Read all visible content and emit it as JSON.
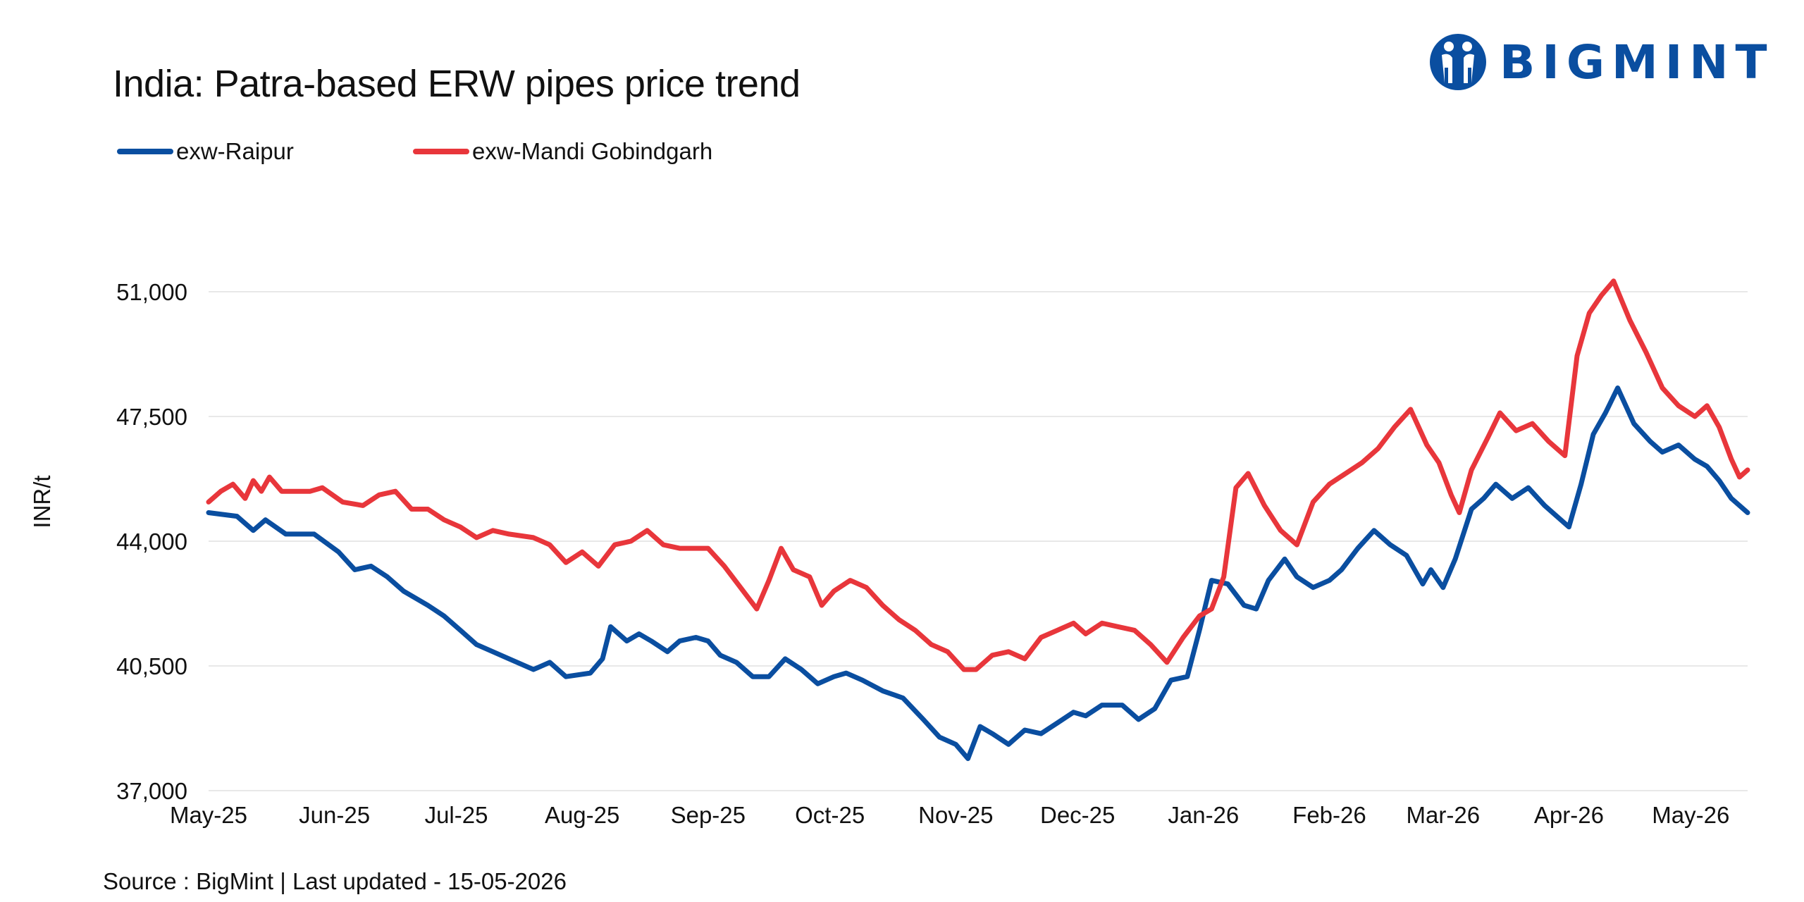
{
  "header": {
    "title": "India: Patra-based ERW pipes price trend",
    "brand": "BIGMINT"
  },
  "footer": {
    "source": "Source : BigMint | Last updated - 15-05-2026"
  },
  "colors": {
    "raipur": "#0a4ea0",
    "gobindgarh": "#e8363b",
    "grid": "#e8e8e8",
    "brand": "#0a4ea0"
  },
  "chart_data": {
    "type": "line",
    "title": "India: Patra-based ERW pipes price trend",
    "xlabel": "",
    "ylabel": "INR/t",
    "x_range": [
      "2025-05-01",
      "2026-05-15"
    ],
    "ylim": [
      37000,
      51000
    ],
    "yticks": [
      37000,
      40500,
      44000,
      47500,
      51000
    ],
    "ytick_labels": [
      "37,000",
      "40,500",
      "44,000",
      "47,500",
      "51,000"
    ],
    "xticks": [
      "2025-05-01",
      "2025-06-01",
      "2025-07-01",
      "2025-08-01",
      "2025-09-01",
      "2025-10-01",
      "2025-11-01",
      "2025-12-01",
      "2026-01-01",
      "2026-02-01",
      "2026-03-01",
      "2026-04-01",
      "2026-05-01"
    ],
    "xtick_labels": [
      "May-25",
      "Jun-25",
      "Jul-25",
      "Aug-25",
      "Sep-25",
      "Oct-25",
      "Nov-25",
      "Dec-25",
      "Jan-26",
      "Feb-26",
      "Mar-26",
      "Apr-26",
      "May-26"
    ],
    "grid": true,
    "legend_position": "top-left",
    "series": [
      {
        "name": "exw-Raipur",
        "color": "#0a4ea0",
        "points": [
          [
            "2025-05-01",
            44800
          ],
          [
            "2025-05-08",
            44700
          ],
          [
            "2025-05-12",
            44300
          ],
          [
            "2025-05-15",
            44600
          ],
          [
            "2025-05-20",
            44200
          ],
          [
            "2025-05-27",
            44200
          ],
          [
            "2025-06-02",
            43700
          ],
          [
            "2025-06-06",
            43200
          ],
          [
            "2025-06-10",
            43300
          ],
          [
            "2025-06-14",
            43000
          ],
          [
            "2025-06-18",
            42600
          ],
          [
            "2025-06-24",
            42200
          ],
          [
            "2025-06-28",
            41900
          ],
          [
            "2025-07-02",
            41500
          ],
          [
            "2025-07-06",
            41100
          ],
          [
            "2025-07-10",
            40900
          ],
          [
            "2025-07-14",
            40700
          ],
          [
            "2025-07-20",
            40400
          ],
          [
            "2025-07-24",
            40600
          ],
          [
            "2025-07-28",
            40200
          ],
          [
            "2025-08-03",
            40300
          ],
          [
            "2025-08-06",
            40700
          ],
          [
            "2025-08-08",
            41600
          ],
          [
            "2025-08-12",
            41200
          ],
          [
            "2025-08-15",
            41400
          ],
          [
            "2025-08-18",
            41200
          ],
          [
            "2025-08-22",
            40900
          ],
          [
            "2025-08-25",
            41200
          ],
          [
            "2025-08-29",
            41300
          ],
          [
            "2025-09-01",
            41200
          ],
          [
            "2025-09-04",
            40800
          ],
          [
            "2025-09-08",
            40600
          ],
          [
            "2025-09-12",
            40200
          ],
          [
            "2025-09-16",
            40200
          ],
          [
            "2025-09-20",
            40700
          ],
          [
            "2025-09-24",
            40400
          ],
          [
            "2025-09-28",
            40000
          ],
          [
            "2025-10-02",
            40200
          ],
          [
            "2025-10-05",
            40300
          ],
          [
            "2025-10-09",
            40100
          ],
          [
            "2025-10-14",
            39800
          ],
          [
            "2025-10-19",
            39600
          ],
          [
            "2025-10-24",
            39000
          ],
          [
            "2025-10-28",
            38500
          ],
          [
            "2025-11-01",
            38300
          ],
          [
            "2025-11-04",
            37900
          ],
          [
            "2025-11-07",
            38800
          ],
          [
            "2025-11-10",
            38600
          ],
          [
            "2025-11-14",
            38300
          ],
          [
            "2025-11-18",
            38700
          ],
          [
            "2025-11-22",
            38600
          ],
          [
            "2025-11-26",
            38900
          ],
          [
            "2025-11-30",
            39200
          ],
          [
            "2025-12-03",
            39100
          ],
          [
            "2025-12-07",
            39400
          ],
          [
            "2025-12-12",
            39400
          ],
          [
            "2025-12-16",
            39000
          ],
          [
            "2025-12-20",
            39300
          ],
          [
            "2025-12-24",
            40100
          ],
          [
            "2025-12-28",
            40200
          ],
          [
            "2025-12-31",
            41500
          ],
          [
            "2026-01-03",
            42900
          ],
          [
            "2026-01-07",
            42800
          ],
          [
            "2026-01-11",
            42200
          ],
          [
            "2026-01-14",
            42100
          ],
          [
            "2026-01-17",
            42900
          ],
          [
            "2026-01-21",
            43500
          ],
          [
            "2026-01-24",
            43000
          ],
          [
            "2026-01-28",
            42700
          ],
          [
            "2026-02-01",
            42900
          ],
          [
            "2026-02-04",
            43200
          ],
          [
            "2026-02-08",
            43800
          ],
          [
            "2026-02-12",
            44300
          ],
          [
            "2026-02-16",
            43900
          ],
          [
            "2026-02-20",
            43600
          ],
          [
            "2026-02-24",
            42800
          ],
          [
            "2026-02-26",
            43200
          ],
          [
            "2026-03-01",
            42700
          ],
          [
            "2026-03-04",
            43500
          ],
          [
            "2026-03-08",
            44900
          ],
          [
            "2026-03-11",
            45200
          ],
          [
            "2026-03-14",
            45600
          ],
          [
            "2026-03-18",
            45200
          ],
          [
            "2026-03-22",
            45500
          ],
          [
            "2026-03-26",
            45000
          ],
          [
            "2026-03-29",
            44700
          ],
          [
            "2026-04-01",
            44400
          ],
          [
            "2026-04-04",
            45600
          ],
          [
            "2026-04-07",
            47000
          ],
          [
            "2026-04-10",
            47600
          ],
          [
            "2026-04-13",
            48300
          ],
          [
            "2026-04-17",
            47300
          ],
          [
            "2026-04-21",
            46800
          ],
          [
            "2026-04-24",
            46500
          ],
          [
            "2026-04-28",
            46700
          ],
          [
            "2026-05-02",
            46300
          ],
          [
            "2026-05-05",
            46100
          ],
          [
            "2026-05-08",
            45700
          ],
          [
            "2026-05-11",
            45200
          ],
          [
            "2026-05-15",
            44800
          ]
        ]
      },
      {
        "name": "exw-Mandi Gobindgarh",
        "color": "#e8363b",
        "points": [
          [
            "2025-05-01",
            45100
          ],
          [
            "2025-05-04",
            45400
          ],
          [
            "2025-05-07",
            45600
          ],
          [
            "2025-05-10",
            45200
          ],
          [
            "2025-05-12",
            45700
          ],
          [
            "2025-05-14",
            45400
          ],
          [
            "2025-05-16",
            45800
          ],
          [
            "2025-05-19",
            45400
          ],
          [
            "2025-05-26",
            45400
          ],
          [
            "2025-05-29",
            45500
          ],
          [
            "2025-06-03",
            45100
          ],
          [
            "2025-06-08",
            45000
          ],
          [
            "2025-06-12",
            45300
          ],
          [
            "2025-06-16",
            45400
          ],
          [
            "2025-06-20",
            44900
          ],
          [
            "2025-06-24",
            44900
          ],
          [
            "2025-06-28",
            44600
          ],
          [
            "2025-07-02",
            44400
          ],
          [
            "2025-07-06",
            44100
          ],
          [
            "2025-07-10",
            44300
          ],
          [
            "2025-07-14",
            44200
          ],
          [
            "2025-07-20",
            44100
          ],
          [
            "2025-07-24",
            43900
          ],
          [
            "2025-07-28",
            43400
          ],
          [
            "2025-08-01",
            43700
          ],
          [
            "2025-08-05",
            43300
          ],
          [
            "2025-08-09",
            43900
          ],
          [
            "2025-08-13",
            44000
          ],
          [
            "2025-08-17",
            44300
          ],
          [
            "2025-08-21",
            43900
          ],
          [
            "2025-08-25",
            43800
          ],
          [
            "2025-08-29",
            43800
          ],
          [
            "2025-09-01",
            43800
          ],
          [
            "2025-09-05",
            43300
          ],
          [
            "2025-09-09",
            42700
          ],
          [
            "2025-09-13",
            42100
          ],
          [
            "2025-09-16",
            42900
          ],
          [
            "2025-09-19",
            43800
          ],
          [
            "2025-09-22",
            43200
          ],
          [
            "2025-09-26",
            43000
          ],
          [
            "2025-09-29",
            42200
          ],
          [
            "2025-10-02",
            42600
          ],
          [
            "2025-10-06",
            42900
          ],
          [
            "2025-10-10",
            42700
          ],
          [
            "2025-10-14",
            42200
          ],
          [
            "2025-10-18",
            41800
          ],
          [
            "2025-10-22",
            41500
          ],
          [
            "2025-10-26",
            41100
          ],
          [
            "2025-10-30",
            40900
          ],
          [
            "2025-11-03",
            40400
          ],
          [
            "2025-11-06",
            40400
          ],
          [
            "2025-11-10",
            40800
          ],
          [
            "2025-11-14",
            40900
          ],
          [
            "2025-11-18",
            40700
          ],
          [
            "2025-11-22",
            41300
          ],
          [
            "2025-11-26",
            41500
          ],
          [
            "2025-11-30",
            41700
          ],
          [
            "2025-12-03",
            41400
          ],
          [
            "2025-12-07",
            41700
          ],
          [
            "2025-12-11",
            41600
          ],
          [
            "2025-12-15",
            41500
          ],
          [
            "2025-12-19",
            41100
          ],
          [
            "2025-12-23",
            40600
          ],
          [
            "2025-12-27",
            41300
          ],
          [
            "2025-12-31",
            41900
          ],
          [
            "2026-01-03",
            42100
          ],
          [
            "2026-01-06",
            43000
          ],
          [
            "2026-01-09",
            45500
          ],
          [
            "2026-01-12",
            45900
          ],
          [
            "2026-01-16",
            45000
          ],
          [
            "2026-01-20",
            44300
          ],
          [
            "2026-01-24",
            43900
          ],
          [
            "2026-01-28",
            45100
          ],
          [
            "2026-02-01",
            45600
          ],
          [
            "2026-02-05",
            45900
          ],
          [
            "2026-02-09",
            46200
          ],
          [
            "2026-02-13",
            46600
          ],
          [
            "2026-02-17",
            47200
          ],
          [
            "2026-02-21",
            47700
          ],
          [
            "2026-02-25",
            46700
          ],
          [
            "2026-02-28",
            46200
          ],
          [
            "2026-03-03",
            45300
          ],
          [
            "2026-03-05",
            44800
          ],
          [
            "2026-03-08",
            46000
          ],
          [
            "2026-03-12",
            46900
          ],
          [
            "2026-03-15",
            47600
          ],
          [
            "2026-03-19",
            47100
          ],
          [
            "2026-03-23",
            47300
          ],
          [
            "2026-03-27",
            46800
          ],
          [
            "2026-03-31",
            46400
          ],
          [
            "2026-04-03",
            49200
          ],
          [
            "2026-04-06",
            50400
          ],
          [
            "2026-04-09",
            50900
          ],
          [
            "2026-04-12",
            51300
          ],
          [
            "2026-04-16",
            50200
          ],
          [
            "2026-04-20",
            49300
          ],
          [
            "2026-04-24",
            48300
          ],
          [
            "2026-04-28",
            47800
          ],
          [
            "2026-05-02",
            47500
          ],
          [
            "2026-05-05",
            47800
          ],
          [
            "2026-05-08",
            47200
          ],
          [
            "2026-05-11",
            46300
          ],
          [
            "2026-05-13",
            45800
          ],
          [
            "2026-05-15",
            46000
          ]
        ]
      }
    ]
  }
}
